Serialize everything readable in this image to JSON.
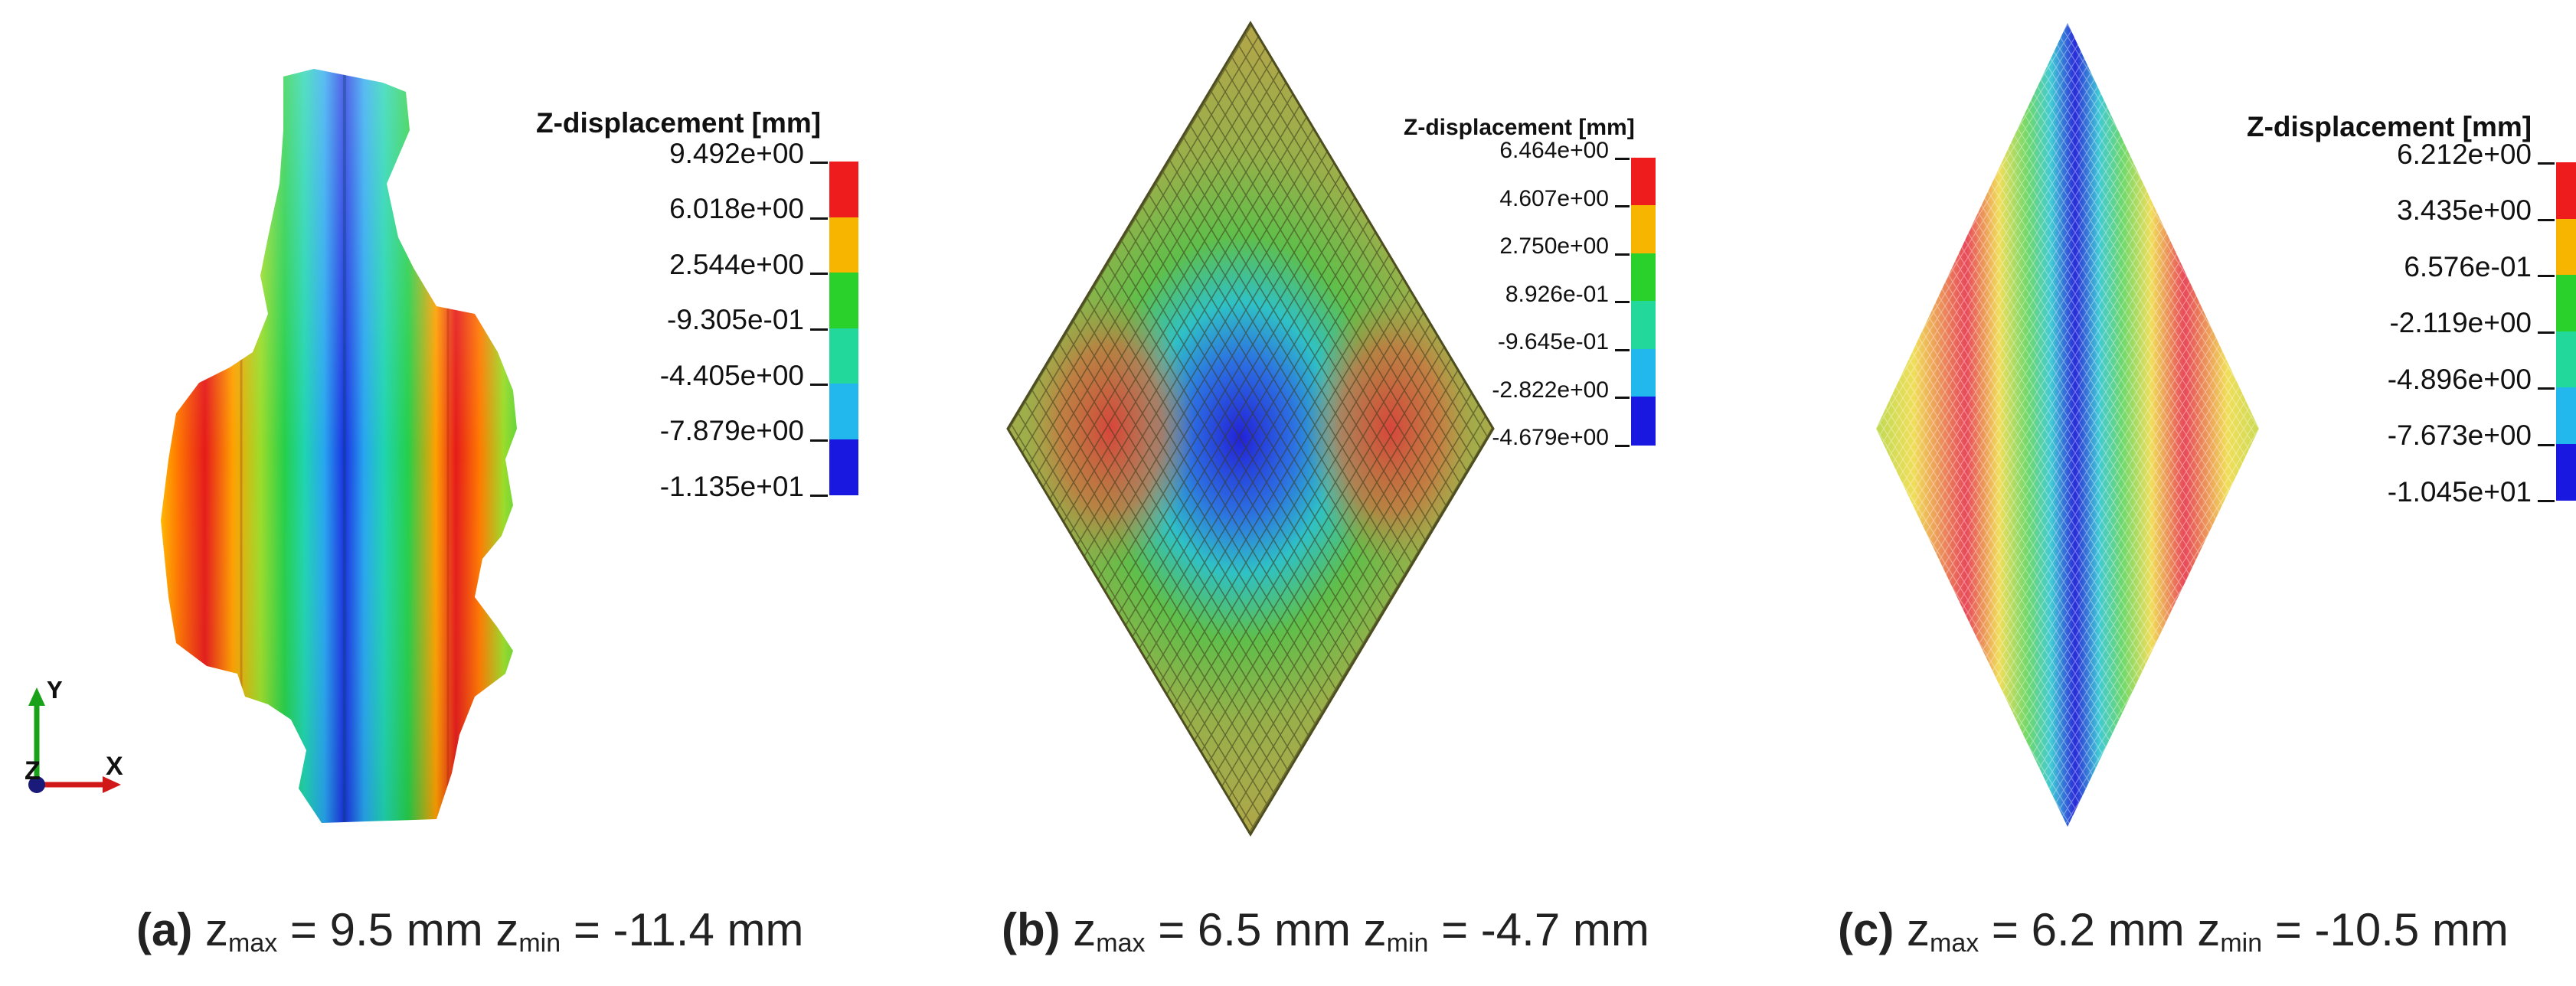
{
  "figure": {
    "panels": [
      {
        "id": "a",
        "legend": {
          "title": "Z-displacement [mm]",
          "ticks": [
            "9.492e+00",
            "6.018e+00",
            "2.544e+00",
            "-9.305e-01",
            "-4.405e+00",
            "-7.879e+00",
            "-1.135e+01"
          ],
          "colors": [
            "#ee1c1c",
            "#f7b500",
            "#2bd12b",
            "#22d99b",
            "#22b8ee",
            "#1818e0"
          ]
        },
        "caption": {
          "label": "(a)",
          "zmax_var": "z",
          "zmax_sub": "max",
          "zmax_text": "= 9.5 mm",
          "zmin_var": "z",
          "zmin_sub": "min",
          "zmin_text": "= -11.4 mm"
        }
      },
      {
        "id": "b",
        "legend": {
          "title": "Z-displacement [mm]",
          "ticks": [
            "6.464e+00",
            "4.607e+00",
            "2.750e+00",
            "8.926e-01",
            "-9.645e-01",
            "-2.822e+00",
            "-4.679e+00"
          ],
          "colors": [
            "#ee1c1c",
            "#f7b500",
            "#2bd12b",
            "#22d99b",
            "#22b8ee",
            "#1818e0"
          ]
        },
        "caption": {
          "label": "(b)",
          "zmax_var": "z",
          "zmax_sub": "max",
          "zmax_text": "= 6.5 mm",
          "zmin_var": "z",
          "zmin_sub": "min",
          "zmin_text": "= -4.7 mm"
        }
      },
      {
        "id": "c",
        "legend": {
          "title": "Z-displacement [mm]",
          "ticks": [
            "6.212e+00",
            "3.435e+00",
            "6.576e-01",
            "-2.119e+00",
            "-4.896e+00",
            "-7.673e+00",
            "-1.045e+01"
          ],
          "colors": [
            "#ee1c1c",
            "#f7b500",
            "#2bd12b",
            "#22d99b",
            "#22b8ee",
            "#1818e0"
          ]
        },
        "caption": {
          "label": "(c)",
          "zmax_var": "z",
          "zmax_sub": "max",
          "zmax_text": "= 6.2 mm",
          "zmin_var": "z",
          "zmin_sub": "min",
          "zmin_text": "= -10.5 mm"
        }
      }
    ],
    "axes_triad": {
      "y": "Y",
      "z": "Z",
      "x": "X"
    }
  }
}
